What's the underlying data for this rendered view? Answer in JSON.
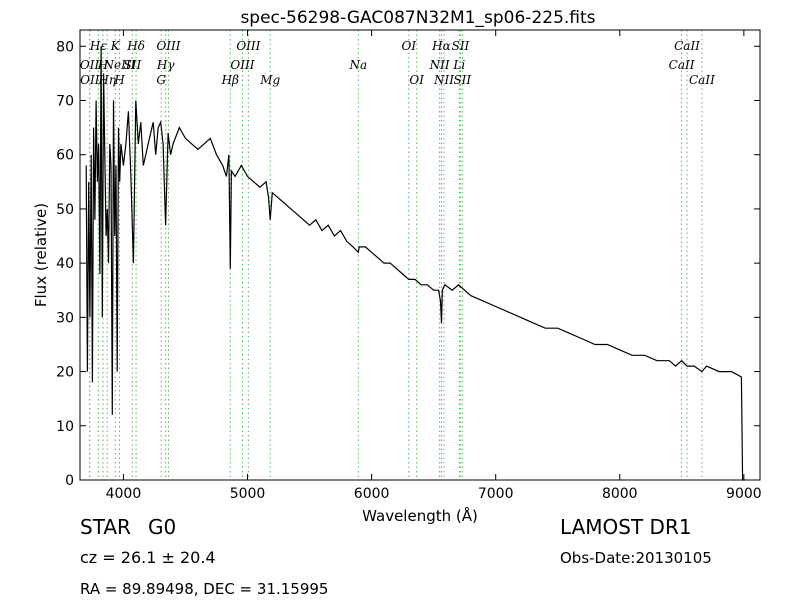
{
  "chart_data": {
    "type": "line",
    "title": "spec-56298-GAC087N32M1_sp06-225.fits",
    "xlabel": "Wavelength (Å)",
    "ylabel": "Flux (relative)",
    "xlim": [
      3650,
      9130
    ],
    "ylim": [
      0,
      83
    ],
    "grid": false,
    "x_ticks": [
      4000,
      5000,
      6000,
      7000,
      8000,
      9000
    ],
    "y_ticks": [
      0,
      10,
      20,
      30,
      40,
      50,
      60,
      70,
      80
    ],
    "line_color": "#000000",
    "marker_color": "#55bb55",
    "series": [
      {
        "x": [
          3700,
          3710,
          3720,
          3730,
          3740,
          3750,
          3760,
          3770,
          3780,
          3790,
          3800,
          3810,
          3820,
          3830,
          3840,
          3850,
          3860,
          3870,
          3880,
          3890,
          3900,
          3910,
          3920,
          3930,
          3940,
          3950,
          3960,
          3970,
          3980,
          3990,
          4000,
          4020,
          4040,
          4060,
          4080,
          4100,
          4120,
          4140,
          4160,
          4180,
          4200,
          4220,
          4240,
          4260,
          4280,
          4300,
          4320,
          4340,
          4360,
          4380,
          4400,
          4450,
          4500,
          4550,
          4600,
          4650,
          4700,
          4750,
          4800,
          4830,
          4850,
          4861,
          4870,
          4900,
          4950,
          5000,
          5050,
          5100,
          5150,
          5170,
          5183,
          5200,
          5250,
          5300,
          5350,
          5400,
          5450,
          5500,
          5550,
          5600,
          5650,
          5700,
          5750,
          5800,
          5850,
          5893,
          5900,
          5950,
          6000,
          6050,
          6100,
          6150,
          6200,
          6250,
          6300,
          6350,
          6400,
          6450,
          6500,
          6540,
          6555,
          6563,
          6570,
          6590,
          6650,
          6700,
          6800,
          6900,
          7000,
          7100,
          7200,
          7300,
          7400,
          7500,
          7600,
          7700,
          7800,
          7900,
          8000,
          8100,
          8200,
          8300,
          8400,
          8450,
          8498,
          8542,
          8600,
          8662,
          8700,
          8800,
          8900,
          8980,
          8990,
          9000,
          9010
        ],
        "y": [
          58,
          20,
          55,
          30,
          60,
          18,
          65,
          48,
          70,
          55,
          62,
          38,
          80,
          30,
          75,
          60,
          45,
          50,
          40,
          62,
          58,
          12,
          70,
          45,
          58,
          20,
          65,
          55,
          62,
          60,
          58,
          62,
          68,
          56,
          40,
          70,
          62,
          66,
          58,
          60,
          62,
          64,
          66,
          60,
          65,
          66,
          62,
          47,
          64,
          60,
          62,
          65,
          63,
          62,
          61,
          62,
          63,
          60,
          58,
          56,
          60,
          39,
          57,
          56,
          58,
          56,
          55,
          54,
          55,
          52,
          48,
          53,
          52,
          51,
          50,
          49,
          48,
          47,
          48,
          46,
          47,
          45,
          46,
          44,
          43,
          42,
          43,
          43,
          42,
          41,
          40,
          40,
          39,
          38,
          37,
          37,
          36,
          36,
          35,
          35,
          33,
          29,
          35,
          36,
          35,
          36,
          34,
          33,
          32,
          31,
          30,
          29,
          28,
          28,
          27,
          26,
          25,
          25,
          24,
          23,
          23,
          22,
          22,
          21,
          22,
          21,
          21,
          20,
          21,
          20,
          20,
          19,
          0,
          0,
          0
        ]
      }
    ],
    "line_markers": [
      {
        "label": "OII",
        "x": 3727,
        "row": 1
      },
      {
        "label": "OII",
        "x": 3729,
        "row": 2
      },
      {
        "label": "Hε",
        "x": 3798,
        "row": 0
      },
      {
        "label": "H",
        "x": 3835,
        "row": 1
      },
      {
        "label": "Hη",
        "x": 3869,
        "row": 2
      },
      {
        "label": "K",
        "x": 3934,
        "row": 0
      },
      {
        "label": "NeIII",
        "x": 3968,
        "row": 1
      },
      {
        "label": "H",
        "x": 3969,
        "row": 2
      },
      {
        "label": "Hδ",
        "x": 4102,
        "row": 0
      },
      {
        "label": "SII",
        "x": 4072,
        "row": 1
      },
      {
        "label": "OIII",
        "x": 4363,
        "row": 0
      },
      {
        "label": "Hγ",
        "x": 4341,
        "row": 1
      },
      {
        "label": "G",
        "x": 4304,
        "row": 2
      },
      {
        "label": "OIII",
        "x": 5007,
        "row": 0
      },
      {
        "label": "Hβ",
        "x": 4861,
        "row": 2
      },
      {
        "label": "OIII",
        "x": 4959,
        "row": 1
      },
      {
        "label": "Mg",
        "x": 5183,
        "row": 2
      },
      {
        "label": "Na",
        "x": 5893,
        "row": 1
      },
      {
        "label": "OI",
        "x": 6300,
        "row": 0
      },
      {
        "label": "OI",
        "x": 6363,
        "row": 2
      },
      {
        "label": "Hα",
        "x": 6563,
        "row": 0
      },
      {
        "label": "NII",
        "x": 6548,
        "row": 1
      },
      {
        "label": "NII",
        "x": 6583,
        "row": 2
      },
      {
        "label": "SII",
        "x": 6716,
        "row": 0
      },
      {
        "label": "Li",
        "x": 6707,
        "row": 1
      },
      {
        "label": "SII",
        "x": 6731,
        "row": 2
      },
      {
        "label": "CaII",
        "x": 8542,
        "row": 0
      },
      {
        "label": "CaII",
        "x": 8498,
        "row": 1
      },
      {
        "label": "CaII",
        "x": 8662,
        "row": 2
      }
    ]
  },
  "info": {
    "object_class": "STAR",
    "subclass": "G0",
    "survey": "LAMOST DR1",
    "cz": "cz = 26.1 ± 20.4",
    "obs_date": "Obs-Date:20130105",
    "coords": "RA = 89.89498, DEC = 31.15995"
  }
}
